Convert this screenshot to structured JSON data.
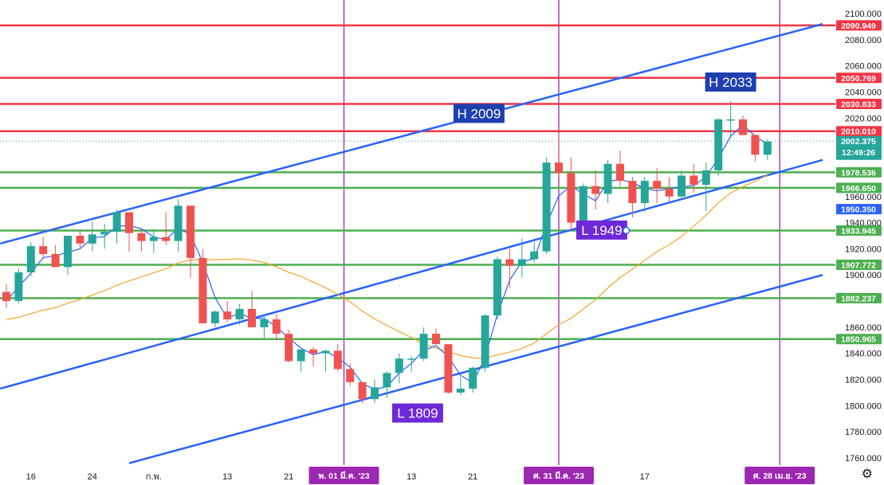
{
  "chart_data": {
    "type": "candlestick",
    "instrument_note": "",
    "y_axis": {
      "range": [
        1755,
        2105
      ],
      "ticks": [
        2100,
        2080,
        2060,
        2040,
        2020,
        1960,
        1940,
        1920,
        1900,
        1860,
        1840,
        1820,
        1800,
        1780,
        1760
      ],
      "tick_labels": [
        "2100.000",
        "2080.000",
        "2060.000",
        "2040.000",
        "2020.000",
        "1960.000",
        "1940.000",
        "1920.000",
        "1900.000",
        "1860.000",
        "1840.000",
        "1820.000",
        "1800.000",
        "1780.000",
        "1760.000"
      ]
    },
    "x_axis": {
      "ticks": [
        {
          "idx": 2,
          "label": "16"
        },
        {
          "idx": 7,
          "label": "24"
        },
        {
          "idx": 12,
          "label": "ก.พ."
        },
        {
          "idx": 18,
          "label": "13"
        },
        {
          "idx": 23,
          "label": "21"
        },
        {
          "idx": 33,
          "label": "13"
        },
        {
          "idx": 38,
          "label": "21"
        },
        {
          "idx": 52,
          "label": "17"
        }
      ],
      "highlighted": [
        {
          "idx": 27.5,
          "label": "พ. 01 มี.ค. '23"
        },
        {
          "idx": 45,
          "label": "ศ. 31 มี.ค. '23"
        },
        {
          "idx": 63,
          "label": "ศ. 28 เม.ย. '23"
        }
      ]
    },
    "candles": [
      [
        1887,
        1893,
        1875,
        1880
      ],
      [
        1880,
        1905,
        1878,
        1902
      ],
      [
        1902,
        1925,
        1899,
        1922
      ],
      [
        1922,
        1929,
        1912,
        1916
      ],
      [
        1916,
        1923,
        1906,
        1906
      ],
      [
        1906,
        1929,
        1900,
        1930
      ],
      [
        1930,
        1934,
        1920,
        1924
      ],
      [
        1924,
        1941,
        1918,
        1931
      ],
      [
        1931,
        1939,
        1920,
        1933
      ],
      [
        1933,
        1950,
        1924,
        1948
      ],
      [
        1948,
        1948,
        1918,
        1932
      ],
      [
        1932,
        1935,
        1918,
        1926
      ],
      [
        1926,
        1935,
        1917,
        1929
      ],
      [
        1929,
        1948,
        1923,
        1926
      ],
      [
        1926,
        1958,
        1918,
        1953
      ],
      [
        1953,
        1953,
        1898,
        1913
      ],
      [
        1913,
        1920,
        1863,
        1863
      ],
      [
        1863,
        1873,
        1860,
        1872
      ],
      [
        1872,
        1880,
        1864,
        1866
      ],
      [
        1866,
        1878,
        1862,
        1874
      ],
      [
        1874,
        1888,
        1862,
        1860
      ],
      [
        1860,
        1870,
        1852,
        1866
      ],
      [
        1866,
        1870,
        1850,
        1855
      ],
      [
        1855,
        1858,
        1833,
        1834
      ],
      [
        1834,
        1842,
        1826,
        1843
      ],
      [
        1843,
        1845,
        1830,
        1840
      ],
      [
        1840,
        1843,
        1826,
        1842
      ],
      [
        1842,
        1847,
        1826,
        1828
      ],
      [
        1828,
        1832,
        1815,
        1818
      ],
      [
        1818,
        1818,
        1802,
        1805
      ],
      [
        1805,
        1820,
        1802,
        1814
      ],
      [
        1814,
        1826,
        1806,
        1825
      ],
      [
        1825,
        1840,
        1817,
        1836
      ],
      [
        1836,
        1838,
        1826,
        1836
      ],
      [
        1836,
        1860,
        1834,
        1855
      ],
      [
        1855,
        1859,
        1848,
        1847
      ],
      [
        1847,
        1847,
        1809,
        1810
      ],
      [
        1810,
        1822,
        1808,
        1813
      ],
      [
        1813,
        1830,
        1810,
        1829
      ],
      [
        1829,
        1870,
        1826,
        1869
      ],
      [
        1869,
        1914,
        1866,
        1912
      ],
      [
        1912,
        1920,
        1890,
        1907
      ],
      [
        1907,
        1928,
        1898,
        1912
      ],
      [
        1912,
        1925,
        1910,
        1918
      ],
      [
        1918,
        1990,
        1916,
        1986
      ],
      [
        1986,
        2009,
        1975,
        1978
      ],
      [
        1978,
        1990,
        1934,
        1940
      ],
      [
        1940,
        1970,
        1933,
        1968
      ],
      [
        1968,
        1980,
        1950,
        1962
      ],
      [
        1962,
        1988,
        1955,
        1985
      ],
      [
        1985,
        1995,
        1968,
        1972
      ],
      [
        1972,
        1975,
        1944,
        1955
      ],
      [
        1955,
        1975,
        1948,
        1972
      ],
      [
        1972,
        1982,
        1955,
        1966
      ],
      [
        1966,
        1975,
        1955,
        1960
      ],
      [
        1960,
        1980,
        1958,
        1976
      ],
      [
        1976,
        1985,
        1963,
        1969
      ],
      [
        1969,
        1986,
        1949,
        1980
      ],
      [
        1980,
        2020,
        1976,
        2019
      ],
      [
        2019,
        2033,
        2005,
        2019
      ],
      [
        2019,
        2022,
        2008,
        2007
      ],
      [
        2007,
        2008,
        1987,
        1992
      ],
      [
        1992,
        2004,
        1988,
        2002
      ]
    ],
    "horizontal_levels": [
      {
        "value": "2090.949",
        "color": "#f23645"
      },
      {
        "value": "2050.769",
        "color": "#f23645"
      },
      {
        "value": "2030.833",
        "color": "#f23645"
      },
      {
        "value": "2010.010",
        "color": "#f23645"
      },
      {
        "value": "1978.536",
        "color": "#4caf50"
      },
      {
        "value": "1966.650",
        "color": "#4caf50"
      },
      {
        "value": "1933.945",
        "color": "#4caf50"
      },
      {
        "value": "1907.772",
        "color": "#4caf50"
      },
      {
        "value": "1882.237",
        "color": "#4caf50"
      },
      {
        "value": "1850.965",
        "color": "#4caf50"
      }
    ],
    "channel_lines": [
      {
        "x1": -0.5,
        "y1": 1924,
        "x2": 66.5,
        "y2": 2092
      },
      {
        "x1": -0.5,
        "y1": 1813,
        "x2": 66.5,
        "y2": 1988
      },
      {
        "x1": 10,
        "y1": 1756,
        "x2": 66.5,
        "y2": 1900
      }
    ],
    "current_price": {
      "value": "2002.375",
      "timer": "12:49:26"
    },
    "extra_price_label": {
      "value": "1950.350"
    },
    "annotations": [
      {
        "text": "H 2009",
        "idx": 38.5,
        "price": 2009,
        "color": "#1e40af"
      },
      {
        "text": "H 2033",
        "idx": 59,
        "price": 2033,
        "color": "#1e40af"
      },
      {
        "text": "L 1809",
        "idx": 33.5,
        "price": 1809,
        "color": "#6d28d9"
      },
      {
        "text": "L 1949",
        "idx": 48.5,
        "price": 1949,
        "color": "#6d28d9"
      }
    ],
    "colors": {
      "up": "#26a69a",
      "down": "#ef5350",
      "ma_fast": "#2962ff",
      "ma_slow": "#f5a623",
      "channel": "#2962ff",
      "vline": "#9c27b0",
      "price_line": "#26a69a"
    },
    "settings_icon": "gear-icon"
  }
}
